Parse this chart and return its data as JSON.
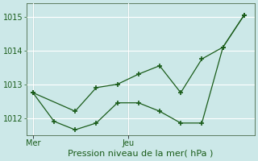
{
  "title": "Pression niveau de la mer( hPa )",
  "bg_color": "#cce8e8",
  "grid_color": "#ffffff",
  "line_color": "#1a5c1a",
  "ylim": [
    1011.5,
    1015.4
  ],
  "yticks": [
    1012,
    1013,
    1014,
    1015
  ],
  "xlabel_fontsize": 8,
  "tick_fontsize": 7,
  "series1_x": [
    0,
    1,
    2,
    3,
    4,
    5,
    6,
    7,
    8,
    9,
    10
  ],
  "series1_y": [
    1012.75,
    1011.9,
    1011.65,
    1011.85,
    1012.45,
    1012.45,
    1012.2,
    1011.85,
    1011.85,
    1014.1,
    1015.05
  ],
  "series2_x": [
    0,
    2,
    3,
    4,
    5,
    6,
    7,
    8,
    9,
    10
  ],
  "series2_y": [
    1012.75,
    1012.2,
    1012.9,
    1013.0,
    1013.3,
    1013.55,
    1012.75,
    1013.75,
    1014.1,
    1015.05
  ],
  "xlim": [
    -0.3,
    10.5
  ],
  "mer_x": 0,
  "jeu_x": 4.5,
  "mer_label": "Mer",
  "jeu_label": "Jeu",
  "vline_color": "#5a7a5a",
  "spine_color": "#4a6a4a"
}
